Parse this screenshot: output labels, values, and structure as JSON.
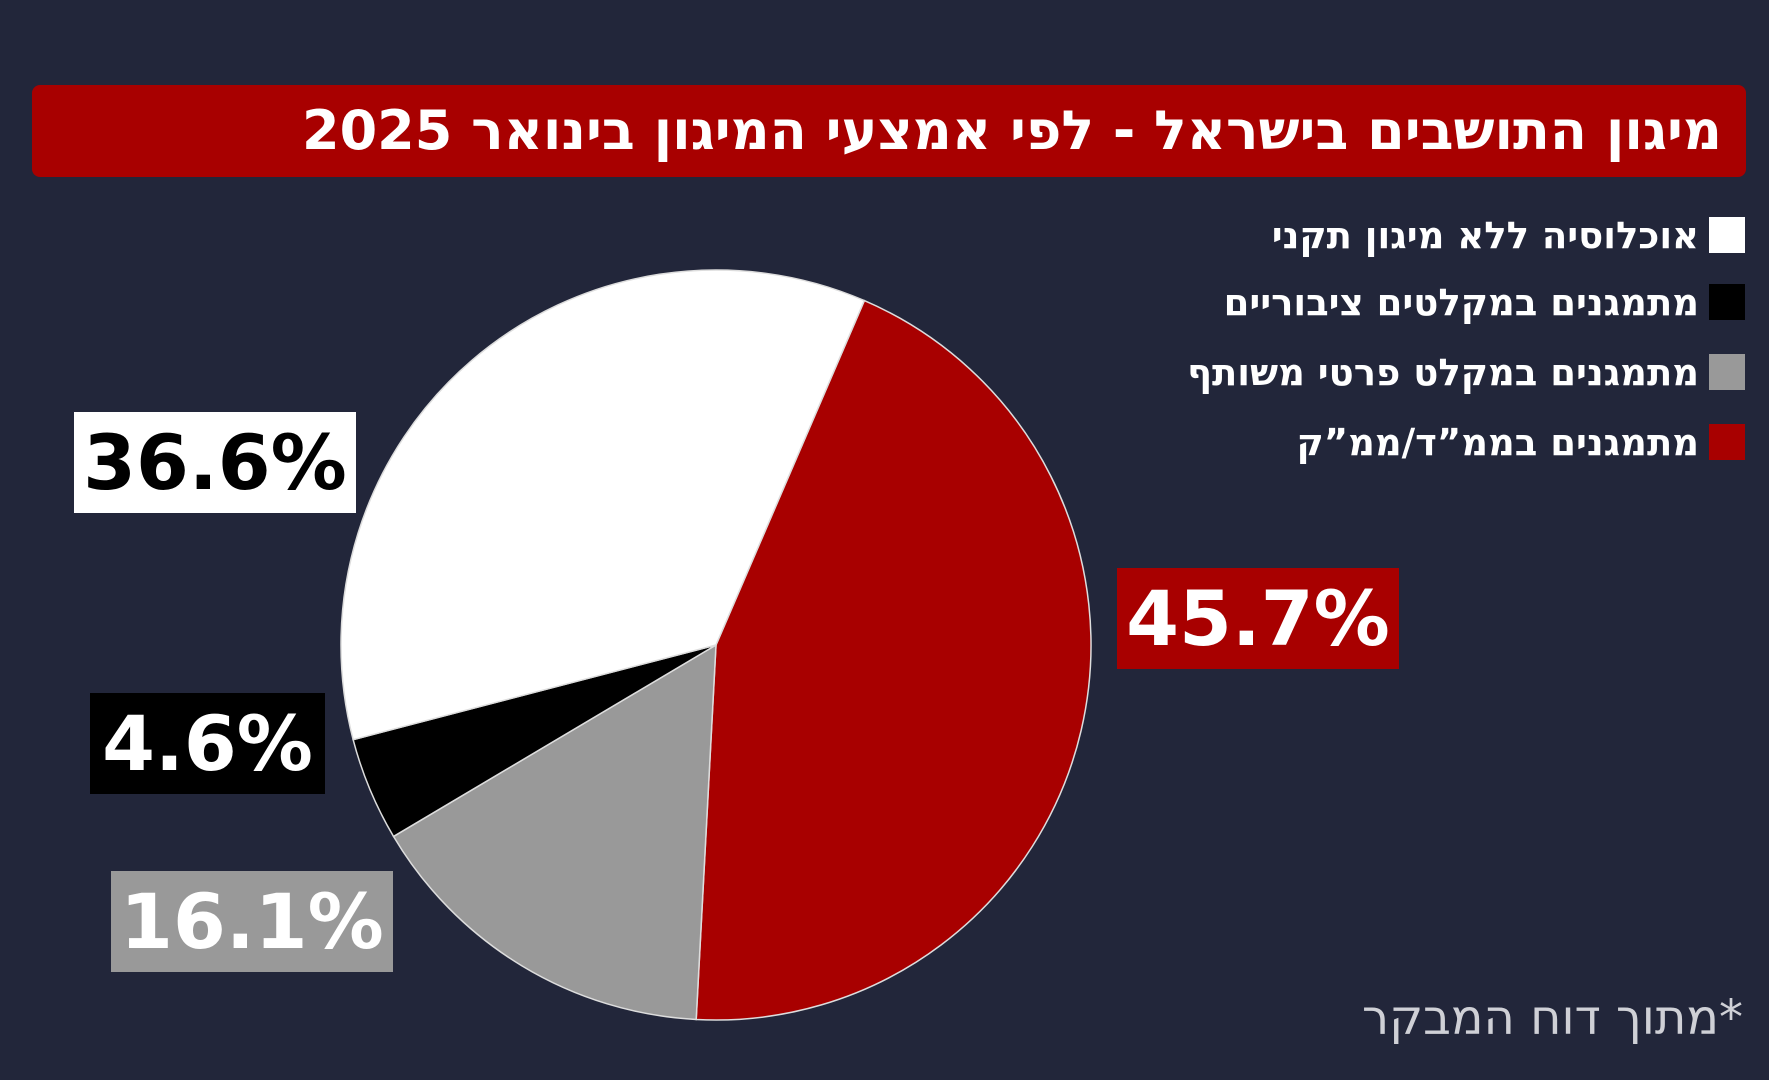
{
  "chart_data": {
    "type": "pie",
    "title": "מיגון התושבים בישראל - לפי אמצעי המיגון בינואר 2025",
    "categories": [
      "אוכלוסיה ללא מיגון תקני",
      "מתמגנים במקלטים ציבוריים",
      "מתמגנים במקלט פרטי משותף",
      "מתמגנים בממ”ד/ממ”ק"
    ],
    "values": [
      36.6,
      4.6,
      16.1,
      45.7
    ],
    "value_labels": [
      "36.6%",
      "4.6%",
      "16.1%",
      "45.7%"
    ],
    "colors": [
      "#ffffff",
      "#000000",
      "#999999",
      "#a80000"
    ],
    "note": "*מתוך דוח המבקר"
  }
}
